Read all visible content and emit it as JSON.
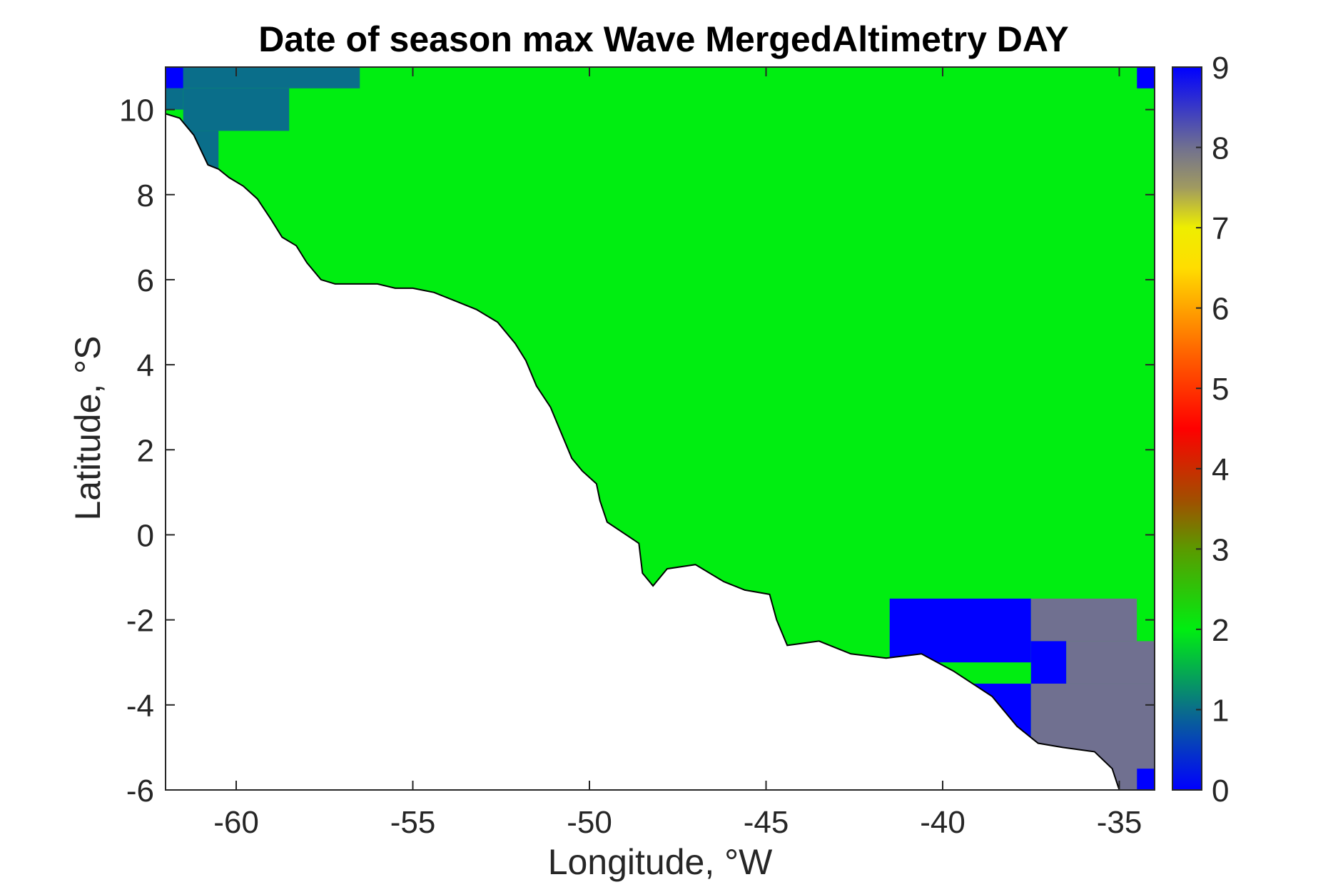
{
  "title": "Date of season max Wave MergedAltimetry DAY",
  "chart_data": {
    "type": "heatmap",
    "title": "Date of season max Wave MergedAltimetry DAY",
    "xlabel": "Longitude, °W",
    "ylabel": "Latitude, °S",
    "xlim": [
      -62,
      -34
    ],
    "ylim": [
      -6,
      11
    ],
    "xticks": [
      -60,
      -55,
      -50,
      -45,
      -40,
      -35
    ],
    "yticks": [
      -6,
      -4,
      -2,
      0,
      2,
      4,
      6,
      8,
      10
    ],
    "colorbar": {
      "min": 0,
      "max": 9,
      "ticks": [
        0,
        1,
        2,
        3,
        4,
        5,
        6,
        7,
        8,
        9
      ],
      "colormap": [
        {
          "value": 0,
          "color": "#0000ff"
        },
        {
          "value": 1,
          "color": "#0a6e8a"
        },
        {
          "value": 2,
          "color": "#00ee11"
        },
        {
          "value": 3,
          "color": "#5b9a00"
        },
        {
          "value": 3.6,
          "color": "#a05000"
        },
        {
          "value": 4.5,
          "color": "#ff0000"
        },
        {
          "value": 5.5,
          "color": "#ff6a00"
        },
        {
          "value": 6.5,
          "color": "#ffdd00"
        },
        {
          "value": 7,
          "color": "#eeee00"
        },
        {
          "value": 7.5,
          "color": "#a09a60"
        },
        {
          "value": 8,
          "color": "#707090"
        },
        {
          "value": 9,
          "color": "#0000ff"
        }
      ]
    },
    "regions": [
      {
        "lon": [
          -62,
          -34
        ],
        "lat": [
          -6,
          11
        ],
        "value": 2
      },
      {
        "lon": [
          -61.5,
          -56.5
        ],
        "lat": [
          10.5,
          11
        ],
        "value": 1
      },
      {
        "lon": [
          -61.5,
          -58.5
        ],
        "lat": [
          9.5,
          10.5
        ],
        "value": 1
      },
      {
        "lon": [
          -62,
          -60.5
        ],
        "lat": [
          8.5,
          9.5
        ],
        "value": 1
      },
      {
        "lon": [
          -62,
          -61.5
        ],
        "lat": [
          10.5,
          11
        ],
        "value": 0
      },
      {
        "lon": [
          -62,
          -61.5
        ],
        "lat": [
          10,
          10.5
        ],
        "value": 1
      },
      {
        "lon": [
          -34.5,
          -34
        ],
        "lat": [
          10.5,
          11
        ],
        "value": 0
      },
      {
        "lon": [
          -41.5,
          -37.5
        ],
        "lat": [
          -3,
          -1.5
        ],
        "value": 0
      },
      {
        "lon": [
          -37.5,
          -34.5
        ],
        "lat": [
          -2.5,
          -1.5
        ],
        "value": 8
      },
      {
        "lon": [
          -34.5,
          -34
        ],
        "lat": [
          -2.5,
          -1.5
        ],
        "value": 2
      },
      {
        "lon": [
          -37.5,
          -36.5
        ],
        "lat": [
          -3.5,
          -2.5
        ],
        "value": 0
      },
      {
        "lon": [
          -36.5,
          -34
        ],
        "lat": [
          -3.5,
          -2.5
        ],
        "value": 8
      },
      {
        "lon": [
          -41.5,
          -37.5
        ],
        "lat": [
          -5,
          -3.5
        ],
        "value": 0
      },
      {
        "lon": [
          -37.5,
          -34
        ],
        "lat": [
          -6,
          -3.5
        ],
        "value": 8
      },
      {
        "lon": [
          -34.5,
          -34
        ],
        "lat": [
          -6,
          -5.5
        ],
        "value": 0
      }
    ],
    "coastline": [
      [
        -62,
        9.9
      ],
      [
        -61.6,
        9.8
      ],
      [
        -61.2,
        9.4
      ],
      [
        -60.8,
        8.7
      ],
      [
        -60.5,
        8.6
      ],
      [
        -60.2,
        8.4
      ],
      [
        -59.8,
        8.2
      ],
      [
        -59.4,
        7.9
      ],
      [
        -59.0,
        7.4
      ],
      [
        -58.7,
        7.0
      ],
      [
        -58.3,
        6.8
      ],
      [
        -58.0,
        6.4
      ],
      [
        -57.6,
        6.0
      ],
      [
        -57.2,
        5.9
      ],
      [
        -56.5,
        5.9
      ],
      [
        -56.0,
        5.9
      ],
      [
        -55.5,
        5.8
      ],
      [
        -55.0,
        5.8
      ],
      [
        -54.4,
        5.7
      ],
      [
        -53.8,
        5.5
      ],
      [
        -53.2,
        5.3
      ],
      [
        -52.6,
        5.0
      ],
      [
        -52.1,
        4.5
      ],
      [
        -51.8,
        4.1
      ],
      [
        -51.5,
        3.5
      ],
      [
        -51.1,
        3.0
      ],
      [
        -50.8,
        2.4
      ],
      [
        -50.5,
        1.8
      ],
      [
        -50.2,
        1.5
      ],
      [
        -49.8,
        1.2
      ],
      [
        -49.7,
        0.8
      ],
      [
        -49.5,
        0.3
      ],
      [
        -48.6,
        -0.2
      ],
      [
        -48.5,
        -0.9
      ],
      [
        -48.2,
        -1.2
      ],
      [
        -47.8,
        -0.8
      ],
      [
        -47.0,
        -0.7
      ],
      [
        -46.2,
        -1.1
      ],
      [
        -45.6,
        -1.3
      ],
      [
        -44.9,
        -1.4
      ],
      [
        -44.7,
        -2.0
      ],
      [
        -44.4,
        -2.6
      ],
      [
        -43.5,
        -2.5
      ],
      [
        -42.6,
        -2.8
      ],
      [
        -41.6,
        -2.9
      ],
      [
        -40.6,
        -2.8
      ],
      [
        -39.7,
        -3.2
      ],
      [
        -38.6,
        -3.8
      ],
      [
        -37.9,
        -4.5
      ],
      [
        -37.3,
        -4.9
      ],
      [
        -36.6,
        -5.0
      ],
      [
        -35.7,
        -5.1
      ],
      [
        -35.2,
        -5.5
      ],
      [
        -35.0,
        -6.0
      ],
      [
        -62,
        -6.0
      ]
    ]
  }
}
